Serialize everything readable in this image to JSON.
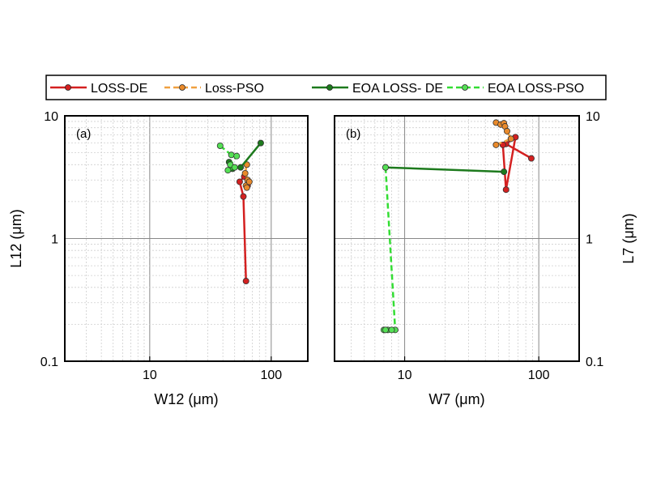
{
  "legend": {
    "placement": "top",
    "entries": [
      {
        "label": "LOSS-DE",
        "color": "#d42020",
        "dashed": false,
        "marker_fill": "#d42020"
      },
      {
        "label": "Loss-PSO",
        "color": "#f0a040",
        "dashed": true,
        "marker_fill": "#e98a2b"
      },
      {
        "label": "EOA LOSS- DE",
        "color": "#1d7a1d",
        "dashed": false,
        "marker_fill": "#1d7a1d"
      },
      {
        "label": "EOA LOSS-PSO",
        "color": "#33dd33",
        "dashed": true,
        "marker_fill": "#55e055"
      }
    ]
  },
  "chart_data": [
    {
      "type": "line",
      "panel_label": "(a)",
      "scale": "log-log",
      "grid": true,
      "xlabel": "W12 (μm)",
      "ylabel": "L12 (μm)",
      "ylabel_side": "left",
      "xlim": [
        2,
        200
      ],
      "ylim": [
        0.1,
        10
      ],
      "xticks": [
        {
          "v": 10,
          "label": "10"
        },
        {
          "v": 100,
          "label": "100"
        }
      ],
      "yticks": [
        {
          "v": 0.1,
          "label": "0.1"
        },
        {
          "v": 1,
          "label": "1"
        },
        {
          "v": 10,
          "label": "10"
        }
      ],
      "series": [
        {
          "name": "LOSS-DE",
          "color": "#d42020",
          "dashed": false,
          "marker_fill": "#d42020",
          "points": [
            [
              62,
              0.45
            ],
            [
              59,
              2.2
            ],
            [
              55,
              2.9
            ],
            [
              60,
              3.2
            ],
            [
              64,
              2.7
            ]
          ]
        },
        {
          "name": "Loss-PSO",
          "color": "#f0a040",
          "dashed": true,
          "marker_fill": "#e98a2b",
          "points": [
            [
              63,
              4.0
            ],
            [
              61,
              3.4
            ],
            [
              64,
              3.0
            ],
            [
              62,
              2.7
            ],
            [
              66,
              2.9
            ],
            [
              63,
              2.6
            ]
          ]
        },
        {
          "name": "EOA LOSS- DE",
          "color": "#1d7a1d",
          "dashed": false,
          "marker_fill": "#1d7a1d",
          "points": [
            [
              45,
              4.2
            ],
            [
              48,
              3.7
            ],
            [
              56,
              3.8
            ],
            [
              82,
              6.0
            ]
          ]
        },
        {
          "name": "EOA LOSS-PSO",
          "color": "#33dd33",
          "dashed": true,
          "marker_fill": "#55e055",
          "points": [
            [
              38,
              5.7
            ],
            [
              47,
              4.8
            ],
            [
              52,
              4.7
            ],
            [
              46,
              4.0
            ],
            [
              44,
              3.6
            ],
            [
              50,
              3.8
            ]
          ]
        }
      ]
    },
    {
      "type": "line",
      "panel_label": "(b)",
      "scale": "log-log",
      "grid": true,
      "xlabel": "W7 (μm)",
      "ylabel": "L7 (μm)",
      "ylabel_side": "right",
      "xlim": [
        3,
        200
      ],
      "ylim": [
        0.1,
        10
      ],
      "xticks": [
        {
          "v": 10,
          "label": "10"
        },
        {
          "v": 100,
          "label": "100"
        }
      ],
      "yticks": [
        {
          "v": 0.1,
          "label": "0.1"
        },
        {
          "v": 1,
          "label": "1"
        },
        {
          "v": 10,
          "label": "10"
        }
      ],
      "series": [
        {
          "name": "LOSS-DE",
          "color": "#d42020",
          "dashed": false,
          "marker_fill": "#d42020",
          "points": [
            [
              88,
              4.5
            ],
            [
              57,
              5.9
            ],
            [
              67,
              6.7
            ],
            [
              57,
              2.5
            ],
            [
              54,
              5.8
            ]
          ]
        },
        {
          "name": "Loss-PSO",
          "color": "#f0a040",
          "dashed": true,
          "marker_fill": "#e98a2b",
          "points": [
            [
              48,
              8.8
            ],
            [
              52,
              8.5
            ],
            [
              55,
              8.7
            ],
            [
              56,
              8.2
            ],
            [
              58,
              7.5
            ],
            [
              62,
              6.5
            ],
            [
              48,
              5.8
            ]
          ]
        },
        {
          "name": "EOA LOSS- DE",
          "color": "#1d7a1d",
          "dashed": false,
          "marker_fill": "#1d7a1d",
          "points": [
            [
              7.2,
              3.8
            ],
            [
              55,
              3.5
            ]
          ]
        },
        {
          "name": "EOA LOSS-PSO",
          "color": "#33dd33",
          "dashed": true,
          "marker_fill": "#55e055",
          "points": [
            [
              7.2,
              3.8
            ],
            [
              8.5,
              0.18
            ],
            [
              7.0,
              0.18
            ],
            [
              7.5,
              0.18
            ],
            [
              8.0,
              0.18
            ],
            [
              7.2,
              0.18
            ]
          ]
        }
      ]
    }
  ]
}
